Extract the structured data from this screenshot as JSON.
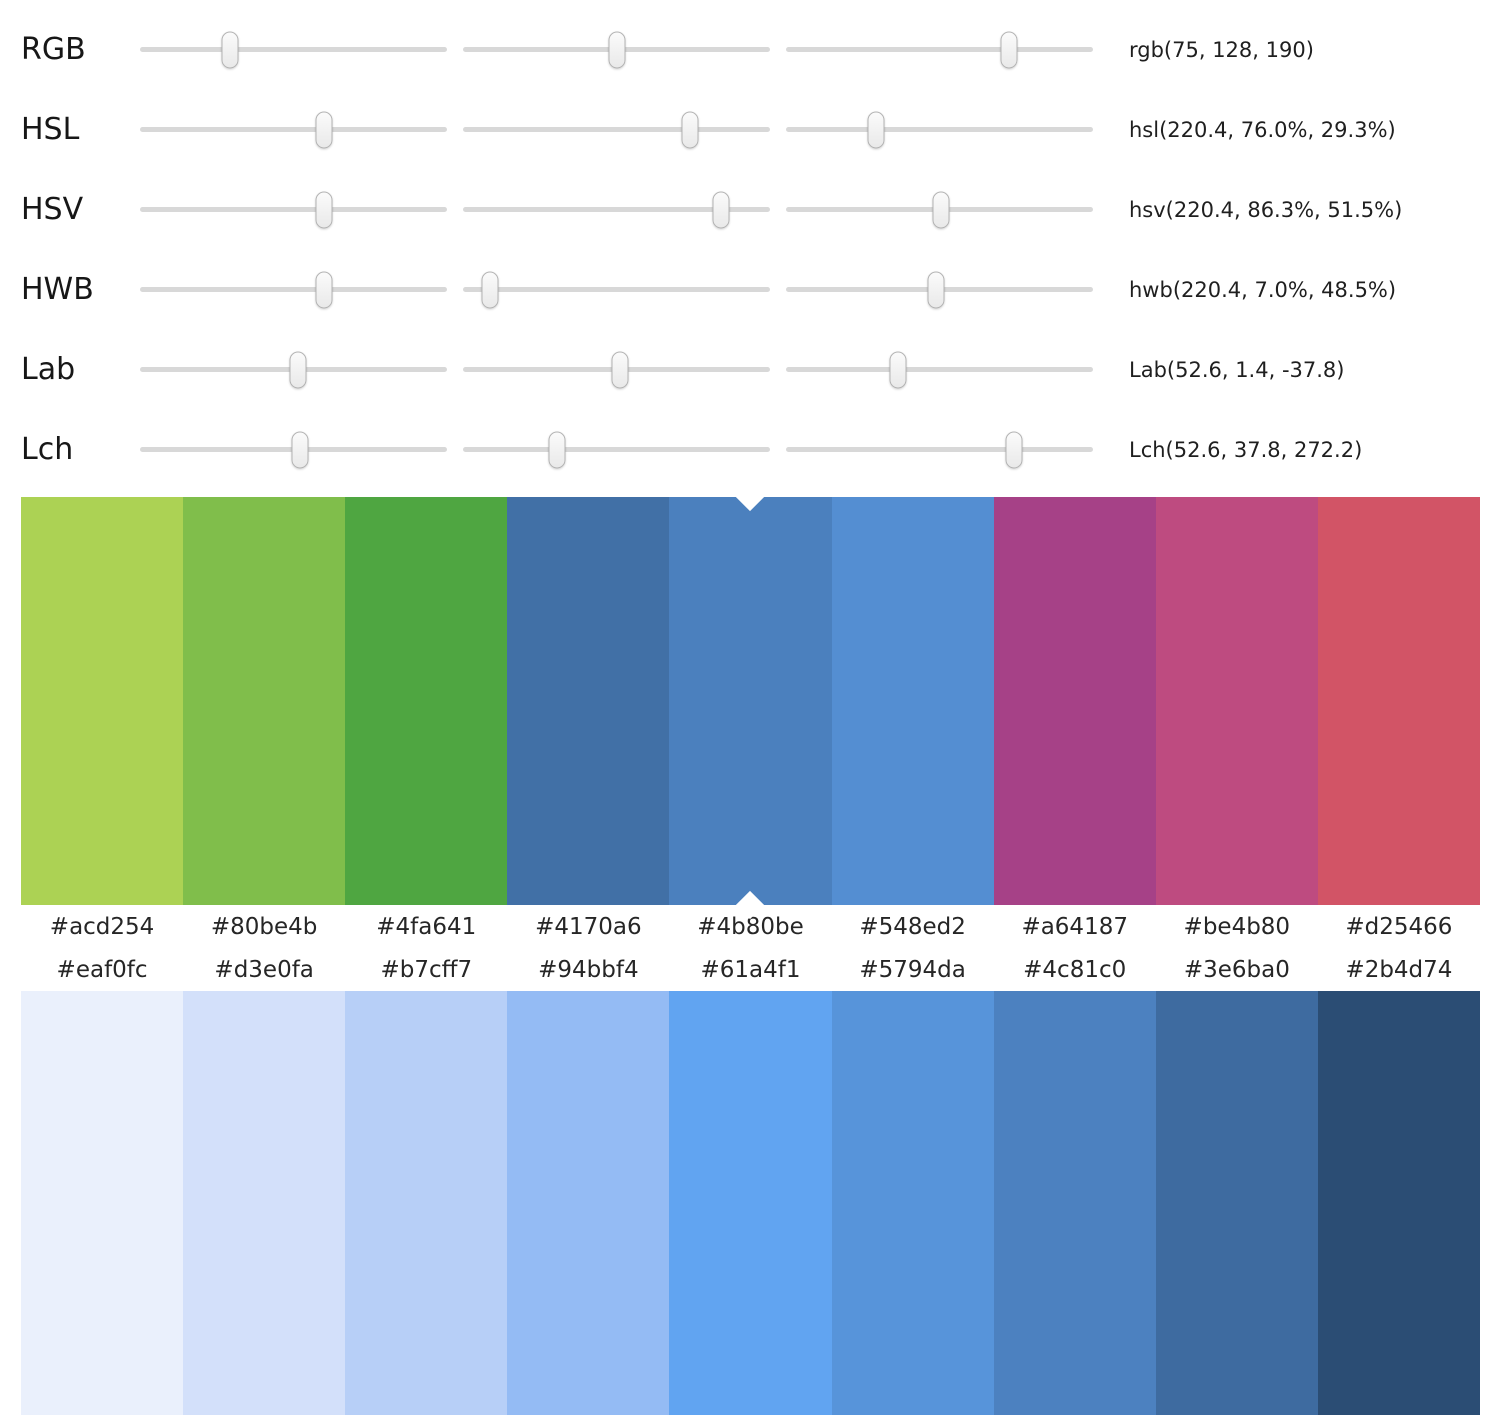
{
  "sliders": {
    "rows": [
      {
        "label": "RGB",
        "value": "rgb(75, 128, 190)",
        "thumb_positions_pct": [
          29.4,
          50.2,
          72.8
        ]
      },
      {
        "label": "HSL",
        "value": "hsl(220.4, 76.0%, 29.3%)",
        "thumb_positions_pct": [
          60.0,
          74.0,
          29.3
        ]
      },
      {
        "label": "HSV",
        "value": "hsv(220.4, 86.3%, 51.5%)",
        "thumb_positions_pct": [
          60.0,
          84.0,
          50.5
        ]
      },
      {
        "label": "HWB",
        "value": "hwb(220.4, 7.0%, 48.5%)",
        "thumb_positions_pct": [
          60.0,
          8.8,
          48.9
        ]
      },
      {
        "label": "Lab",
        "value": "Lab(52.6, 1.4, -37.8)",
        "thumb_positions_pct": [
          51.5,
          51.0,
          36.5
        ]
      },
      {
        "label": "Lch",
        "value": "Lch(52.6, 37.8, 272.2)",
        "thumb_positions_pct": [
          52.0,
          30.6,
          74.3
        ]
      }
    ]
  },
  "hue_palette": {
    "selected_index": 4,
    "swatches": [
      {
        "hex": "#acd254"
      },
      {
        "hex": "#80be4b"
      },
      {
        "hex": "#4fa641"
      },
      {
        "hex": "#4170a6"
      },
      {
        "hex": "#4b80be"
      },
      {
        "hex": "#548ed2"
      },
      {
        "hex": "#a64187"
      },
      {
        "hex": "#be4b80"
      },
      {
        "hex": "#d25466"
      }
    ]
  },
  "shade_palette": {
    "selected_index": -1,
    "swatches": [
      {
        "hex": "#eaf0fc"
      },
      {
        "hex": "#d3e0fa"
      },
      {
        "hex": "#b7cff7"
      },
      {
        "hex": "#94bbf4"
      },
      {
        "hex": "#61a4f1"
      },
      {
        "hex": "#5794da"
      },
      {
        "hex": "#4c81c0"
      },
      {
        "hex": "#3e6ba0"
      },
      {
        "hex": "#2b4d74"
      }
    ]
  }
}
